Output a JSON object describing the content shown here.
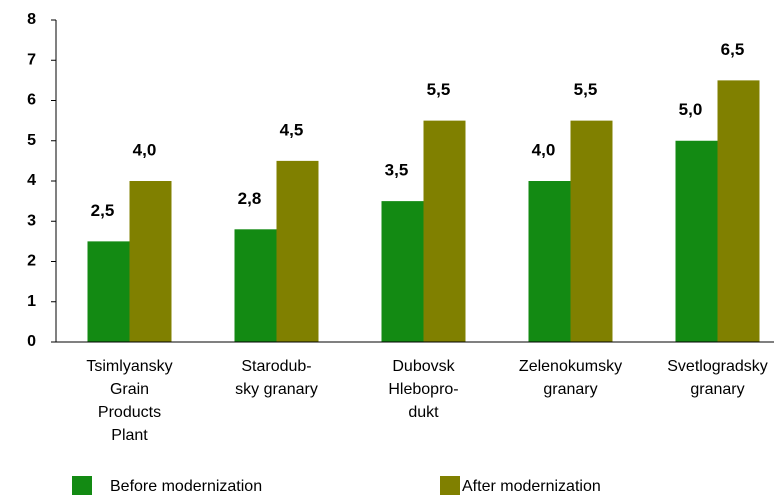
{
  "chart_data": {
    "type": "bar",
    "categories": [
      [
        "Tsimlyansky",
        "Grain",
        "Products",
        "Plant"
      ],
      [
        "Starodub-",
        "sky granary"
      ],
      [
        "Dubovsk",
        "Hlebopro-",
        "dukt"
      ],
      [
        "Zelenokumsky",
        "granary"
      ],
      [
        "Svetlogradsky",
        "granary"
      ]
    ],
    "series": [
      {
        "name": "Before modernization",
        "color": "#138a13",
        "values": [
          2.5,
          2.8,
          3.5,
          4.0,
          5.0
        ],
        "value_labels": [
          "2,5",
          "2,8",
          "3,5",
          "4,0",
          "5,0"
        ]
      },
      {
        "name": "After modernization",
        "color": "#808000",
        "values": [
          4.0,
          4.5,
          5.5,
          5.5,
          6.5
        ],
        "value_labels": [
          "4,0",
          "4,5",
          "5,5",
          "5,5",
          "6,5"
        ]
      }
    ],
    "ylim": [
      0,
      8
    ],
    "yticks": [
      0,
      1,
      2,
      3,
      4,
      5,
      6,
      7,
      8
    ],
    "grid": false,
    "legend": "bottom"
  }
}
